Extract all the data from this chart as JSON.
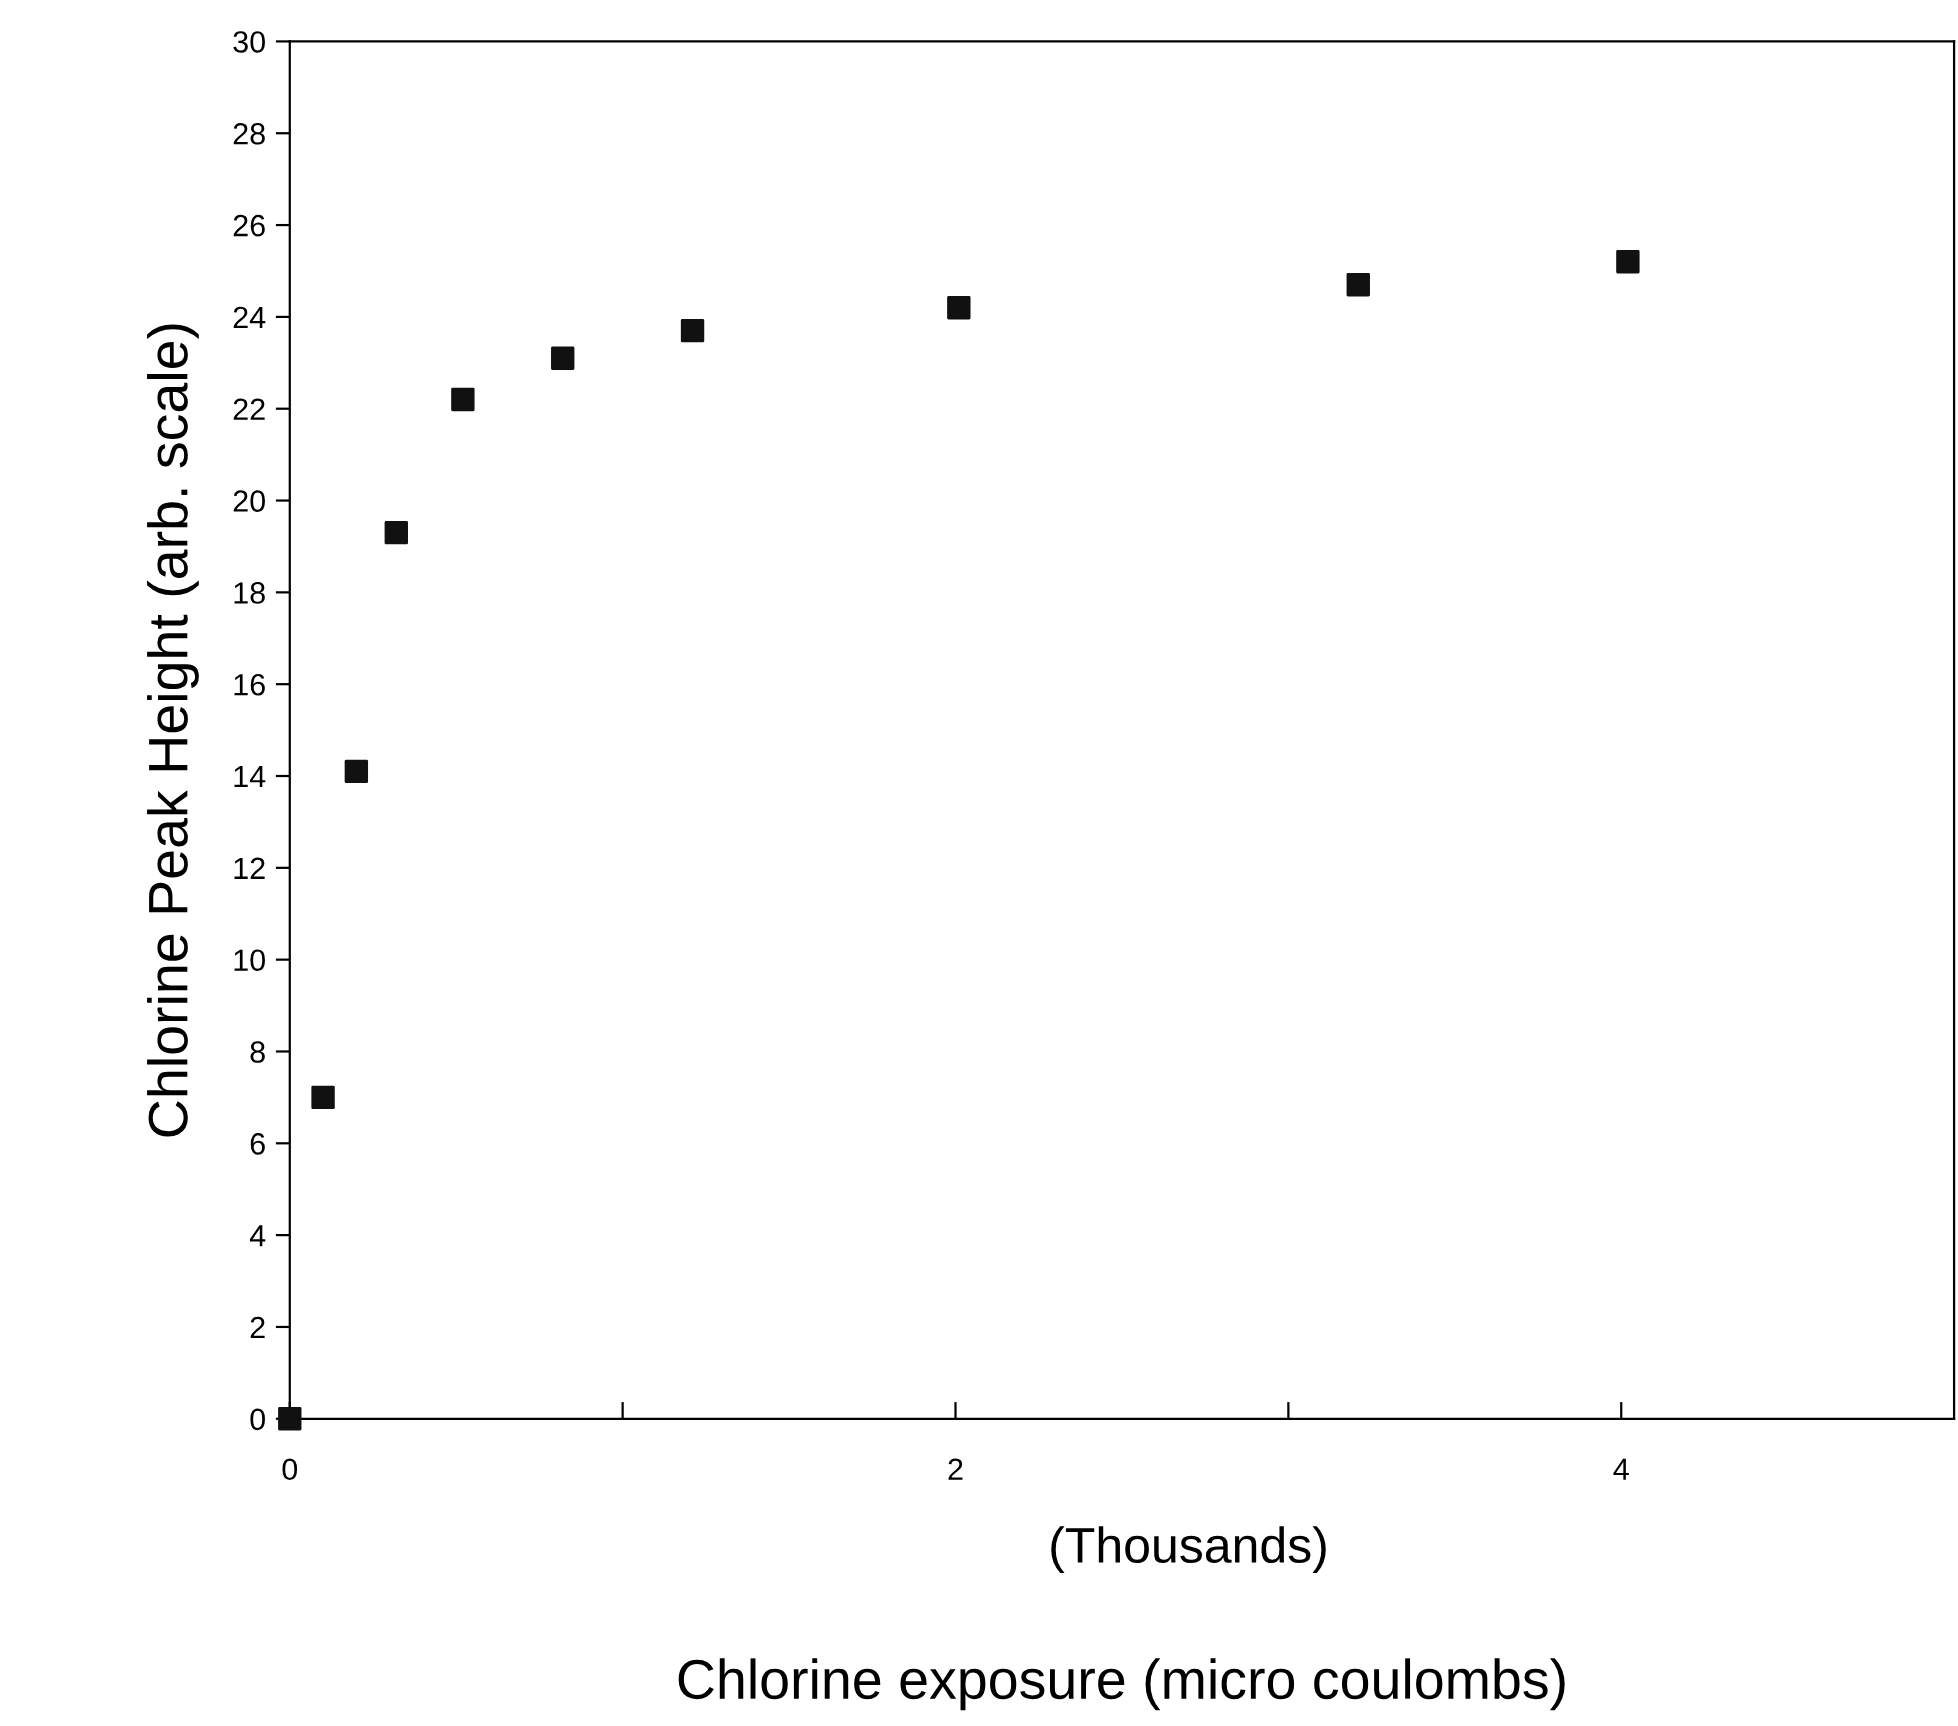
{
  "chart_data": {
    "type": "scatter",
    "xlabel": "Chlorine exposure (micro coulombs)",
    "ylabel": "Chlorine Peak Height (arb. scale)",
    "annotations": [
      "(Thousands)"
    ],
    "x": [
      0,
      0.1,
      0.2,
      0.32,
      0.52,
      0.82,
      1.21,
      2.01,
      3.21,
      4.02
    ],
    "series": [
      {
        "color": "#111111",
        "values": [
          0,
          7.0,
          14.1,
          19.3,
          22.2,
          23.1,
          23.7,
          24.2,
          24.7,
          25.2
        ]
      }
    ],
    "marker": "square",
    "grid": false,
    "legend": false,
    "xlim": [
      0,
      5
    ],
    "xticks": [
      0,
      {
        "value": 1,
        "label": null
      },
      2,
      {
        "value": 3,
        "label": null
      },
      4
    ],
    "ylim": [
      0,
      30
    ],
    "yticks": [
      0,
      2,
      4,
      6,
      8,
      10,
      12,
      14,
      16,
      18,
      20,
      22,
      24,
      26,
      28,
      30
    ]
  }
}
